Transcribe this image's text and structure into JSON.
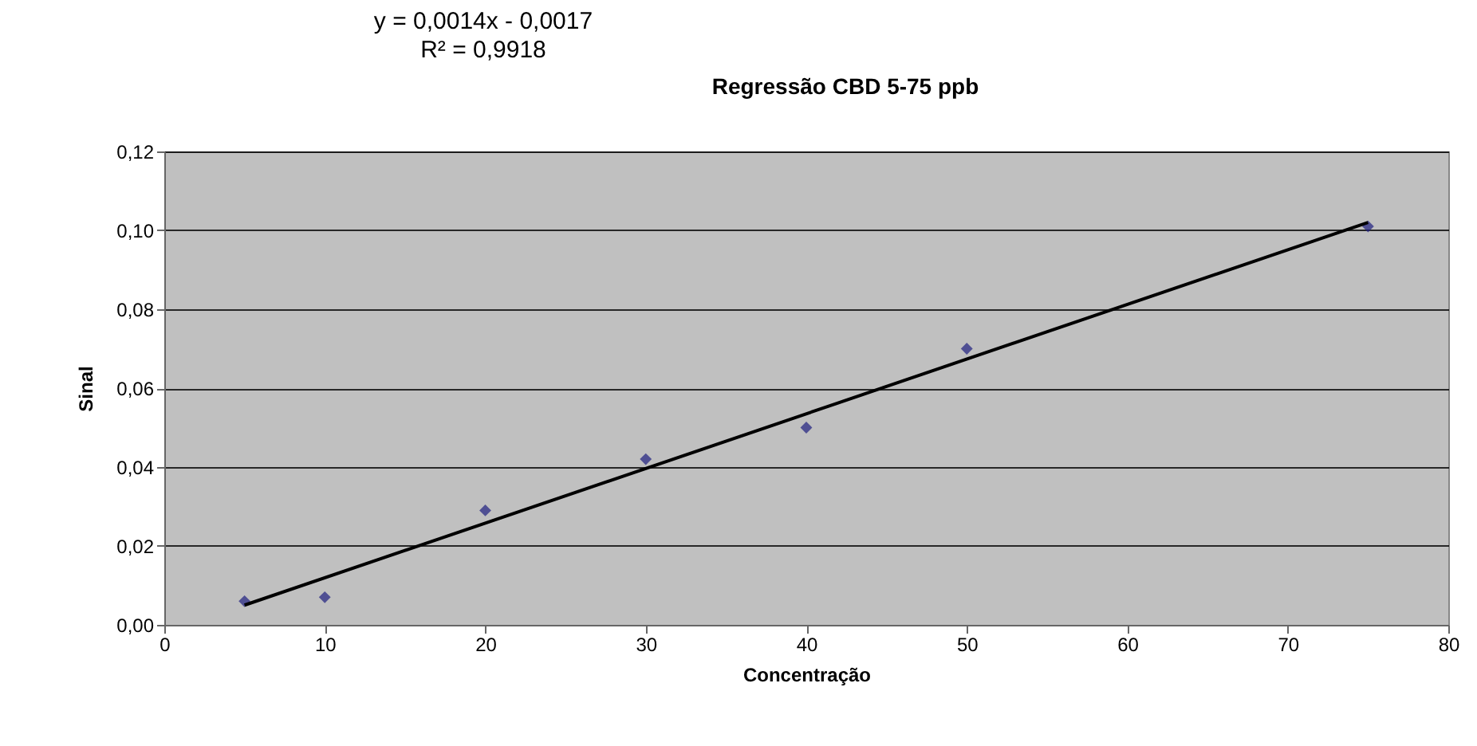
{
  "chart_data": {
    "type": "scatter",
    "title": "Regressão CBD 5-75 ppb",
    "xlabel": "Concentração",
    "ylabel": "Sinal",
    "annotations": [
      "y = 0,0014x - 0,0017",
      "R² = 0,9918"
    ],
    "x": [
      5,
      10,
      20,
      30,
      40,
      50,
      75
    ],
    "series": [
      {
        "color": "#1f1f80",
        "marker": "diamond",
        "values": [
          0.006,
          0.007,
          0.029,
          0.042,
          0.05,
          0.07,
          0.101
        ]
      },
      {
        "type": "line",
        "color": "#000000",
        "x": [
          5,
          75
        ],
        "values": [
          0.005,
          0.102
        ]
      }
    ],
    "xlim": [
      0,
      80
    ],
    "xticks": [
      0,
      10,
      20,
      30,
      40,
      50,
      60,
      70,
      80
    ],
    "ylim": [
      0,
      0.12
    ],
    "yticks": [
      {
        "value": 0,
        "label": "0,00"
      },
      {
        "value": 0.02,
        "label": "0,02"
      },
      {
        "value": 0.04,
        "label": "0,04"
      },
      {
        "value": 0.06,
        "label": "0,06"
      },
      {
        "value": 0.08,
        "label": "0,08"
      },
      {
        "value": 0.1,
        "label": "0,10"
      },
      {
        "value": 0.12,
        "label": "0,12"
      }
    ],
    "grid": "y"
  }
}
